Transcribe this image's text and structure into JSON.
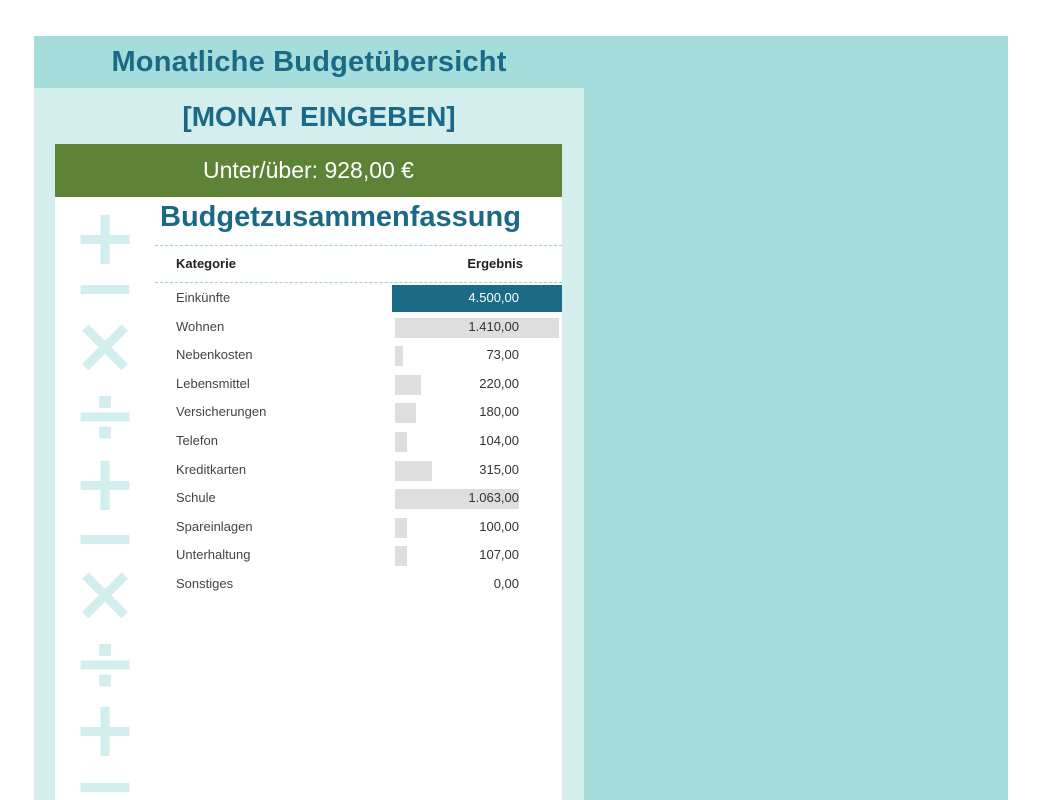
{
  "header": {
    "title": "Monatliche Budgetübersicht",
    "month": "[MONAT EINGEBEN]",
    "balance": "Unter/über: 928,00 €"
  },
  "summary": {
    "title": "Budgetzusammenfassung",
    "col_category": "Kategorie",
    "col_result": "Ergebnis",
    "rows": [
      {
        "label": "Einkünfte",
        "value": "4.500,00",
        "amount": 4500,
        "highlight": true
      },
      {
        "label": "Wohnen",
        "value": "1.410,00",
        "amount": 1410
      },
      {
        "label": "Nebenkosten",
        "value": "73,00",
        "amount": 73
      },
      {
        "label": "Lebensmittel",
        "value": "220,00",
        "amount": 220
      },
      {
        "label": "Versicherungen",
        "value": "180,00",
        "amount": 180
      },
      {
        "label": "Telefon",
        "value": "104,00",
        "amount": 104
      },
      {
        "label": "Kreditkarten",
        "value": "315,00",
        "amount": 315
      },
      {
        "label": "Schule",
        "value": "1.063,00",
        "amount": 1063
      },
      {
        "label": "Spareinlagen",
        "value": "100,00",
        "amount": 100
      },
      {
        "label": "Unterhaltung",
        "value": "107,00",
        "amount": 107
      },
      {
        "label": "Sonstiges",
        "value": "0,00",
        "amount": 0
      }
    ]
  },
  "decoration": {
    "symbols": [
      "+",
      "−",
      "×",
      "÷",
      "+",
      "−",
      "×",
      "÷",
      "+",
      "−"
    ]
  },
  "colors": {
    "accent": "#1a6a87",
    "green_bar": "#5e8236",
    "sheet_bg": "#a5dcdc",
    "panel_bg": "#d4eeee",
    "highlight": "#1b6a86",
    "data_bar": "#dedede"
  }
}
